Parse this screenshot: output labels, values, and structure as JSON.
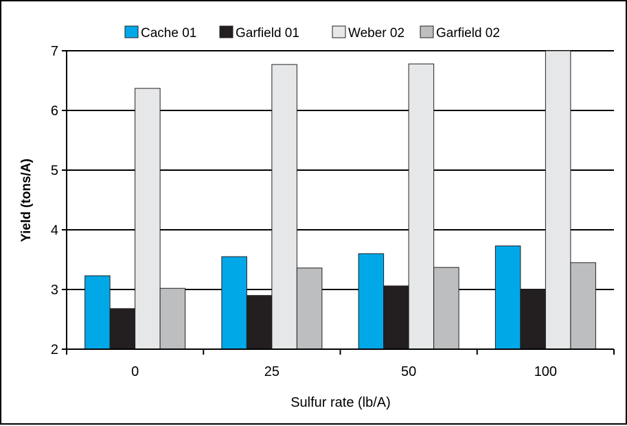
{
  "chart_data": {
    "type": "bar",
    "xlabel": "Sulfur rate (lb/A)",
    "ylabel": "Yield (tons/A)",
    "categories": [
      "0",
      "25",
      "50",
      "100"
    ],
    "ylim": [
      2,
      7
    ],
    "yticks": [
      "2",
      "3",
      "4",
      "5",
      "6",
      "7"
    ],
    "grid": "horizontal",
    "legend_position": "top",
    "series": [
      {
        "name": "Cache 01",
        "color": "#00a8e8",
        "values": [
          3.23,
          3.55,
          3.6,
          3.73
        ]
      },
      {
        "name": "Garfield 01",
        "color": "#231f20",
        "values": [
          2.68,
          2.9,
          3.06,
          3.0
        ]
      },
      {
        "name": "Weber 02",
        "color": "#e6e7e8",
        "values": [
          6.37,
          6.77,
          6.78,
          7.0
        ]
      },
      {
        "name": "Garfield 02",
        "color": "#bcbec0",
        "values": [
          3.02,
          3.36,
          3.37,
          3.45
        ]
      }
    ]
  }
}
